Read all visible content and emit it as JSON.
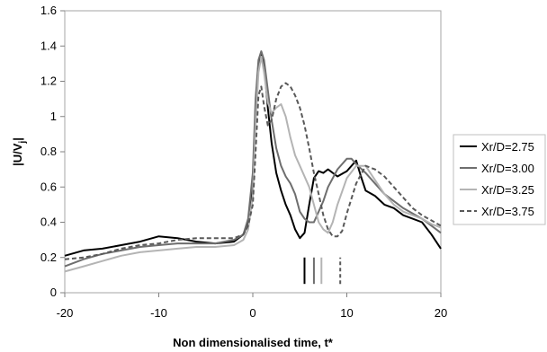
{
  "chart_data": {
    "type": "line",
    "xlabel": "Non dimensionalised time, t*",
    "ylabel": "|U/V",
    "ylabel_sub": "j",
    "ylabel_end": "|",
    "xlim": [
      -20,
      20
    ],
    "ylim": [
      0,
      1.6
    ],
    "xticks": [
      -20,
      -10,
      0,
      10,
      20
    ],
    "yticks": [
      0,
      0.2,
      0.4,
      0.6,
      0.8,
      1,
      1.2,
      1.4,
      1.6
    ],
    "ytick_labels": [
      "0",
      "0.2",
      "0.4",
      "0.6",
      "0.8",
      "1",
      "1.2",
      "1.4",
      "1.6"
    ],
    "legend_position": "right",
    "series": [
      {
        "name": "Xr/D=2.75",
        "color": "#000000",
        "dash": "solid",
        "x": [
          -20,
          -18,
          -16,
          -14,
          -12,
          -10,
          -8,
          -6,
          -4,
          -2,
          -1,
          -0.5,
          0,
          0.3,
          0.6,
          0.9,
          1.2,
          1.6,
          2,
          2.5,
          3,
          3.5,
          4,
          4.5,
          5,
          5.5,
          6,
          6.5,
          7,
          7.5,
          8,
          9,
          10,
          11,
          11.5,
          12,
          13,
          14,
          15,
          16,
          17,
          18,
          19,
          20
        ],
        "y": [
          0.21,
          0.24,
          0.25,
          0.27,
          0.29,
          0.32,
          0.31,
          0.29,
          0.28,
          0.29,
          0.33,
          0.4,
          0.62,
          1.05,
          1.3,
          1.36,
          1.3,
          1.05,
          0.85,
          0.68,
          0.58,
          0.5,
          0.44,
          0.36,
          0.31,
          0.34,
          0.5,
          0.65,
          0.69,
          0.68,
          0.7,
          0.66,
          0.69,
          0.75,
          0.66,
          0.58,
          0.55,
          0.5,
          0.48,
          0.44,
          0.42,
          0.4,
          0.33,
          0.25
        ]
      },
      {
        "name": "Xr/D=3.00",
        "color": "#6e6e6e",
        "dash": "solid",
        "x": [
          -20,
          -18,
          -16,
          -14,
          -12,
          -10,
          -8,
          -6,
          -4,
          -2,
          -1,
          -0.5,
          0,
          0.3,
          0.6,
          0.9,
          1.2,
          1.6,
          2,
          2.5,
          3,
          3.5,
          4,
          4.5,
          5,
          5.5,
          6,
          6.5,
          7,
          7.5,
          8,
          9,
          10,
          10.5,
          11,
          12,
          13,
          14,
          15,
          16,
          17,
          18,
          19,
          20
        ],
        "y": [
          0.15,
          0.19,
          0.22,
          0.24,
          0.26,
          0.27,
          0.28,
          0.28,
          0.28,
          0.3,
          0.33,
          0.42,
          0.68,
          1.1,
          1.32,
          1.37,
          1.32,
          1.15,
          0.98,
          0.82,
          0.72,
          0.66,
          0.62,
          0.56,
          0.46,
          0.42,
          0.4,
          0.4,
          0.46,
          0.52,
          0.6,
          0.7,
          0.76,
          0.76,
          0.73,
          0.68,
          0.62,
          0.56,
          0.52,
          0.48,
          0.45,
          0.42,
          0.38,
          0.34
        ]
      },
      {
        "name": "Xr/D=3.25",
        "color": "#b4b4b4",
        "dash": "solid",
        "x": [
          -20,
          -18,
          -16,
          -14,
          -12,
          -10,
          -8,
          -6,
          -4,
          -2,
          -1,
          -0.5,
          0,
          0.3,
          0.6,
          0.9,
          1.2,
          1.6,
          2,
          2.5,
          3,
          3.5,
          4,
          4.5,
          5,
          5.5,
          6,
          6.5,
          7,
          7.5,
          8,
          8.5,
          9,
          10,
          11,
          12,
          13,
          14,
          15,
          16,
          17,
          18,
          19,
          20
        ],
        "y": [
          0.12,
          0.15,
          0.18,
          0.21,
          0.23,
          0.24,
          0.25,
          0.26,
          0.26,
          0.27,
          0.3,
          0.36,
          0.55,
          0.95,
          1.25,
          1.34,
          1.25,
          1.08,
          1.02,
          1.05,
          1.07,
          1.0,
          0.88,
          0.78,
          0.72,
          0.66,
          0.6,
          0.5,
          0.4,
          0.36,
          0.34,
          0.4,
          0.5,
          0.65,
          0.72,
          0.72,
          0.64,
          0.56,
          0.5,
          0.46,
          0.44,
          0.42,
          0.39,
          0.37
        ]
      },
      {
        "name": "Xr/D=3.75",
        "color": "#595959",
        "dash": "dashed",
        "x": [
          -20,
          -18,
          -16,
          -14,
          -12,
          -10,
          -8,
          -6,
          -4,
          -2,
          -1,
          -0.5,
          0,
          0.3,
          0.6,
          0.9,
          1.2,
          1.6,
          2,
          2.5,
          3,
          3.5,
          4,
          4.5,
          5,
          5.5,
          6,
          6.5,
          7,
          7.5,
          8,
          8.5,
          9,
          9.5,
          10,
          11,
          12,
          13,
          14,
          15,
          16,
          17,
          18,
          19,
          20
        ],
        "y": [
          0.19,
          0.2,
          0.22,
          0.25,
          0.27,
          0.28,
          0.3,
          0.31,
          0.31,
          0.31,
          0.33,
          0.38,
          0.5,
          0.8,
          1.12,
          1.17,
          1.06,
          0.95,
          0.98,
          1.1,
          1.17,
          1.19,
          1.17,
          1.12,
          1.05,
          0.95,
          0.82,
          0.68,
          0.56,
          0.44,
          0.36,
          0.32,
          0.32,
          0.35,
          0.45,
          0.62,
          0.72,
          0.7,
          0.66,
          0.6,
          0.54,
          0.48,
          0.44,
          0.41,
          0.38
        ]
      }
    ],
    "markers": [
      {
        "series": "Xr/D=2.75",
        "x": 5.5,
        "y_range": [
          0.05,
          0.2
        ],
        "color": "#000000",
        "dash": "solid"
      },
      {
        "series": "Xr/D=3.00",
        "x": 6.5,
        "y_range": [
          0.05,
          0.2
        ],
        "color": "#6e6e6e",
        "dash": "solid"
      },
      {
        "series": "Xr/D=3.25",
        "x": 7.3,
        "y_range": [
          0.05,
          0.2
        ],
        "color": "#b4b4b4",
        "dash": "solid"
      },
      {
        "series": "Xr/D=3.75",
        "x": 9.3,
        "y_range": [
          0.05,
          0.2
        ],
        "color": "#595959",
        "dash": "dashed"
      }
    ]
  }
}
